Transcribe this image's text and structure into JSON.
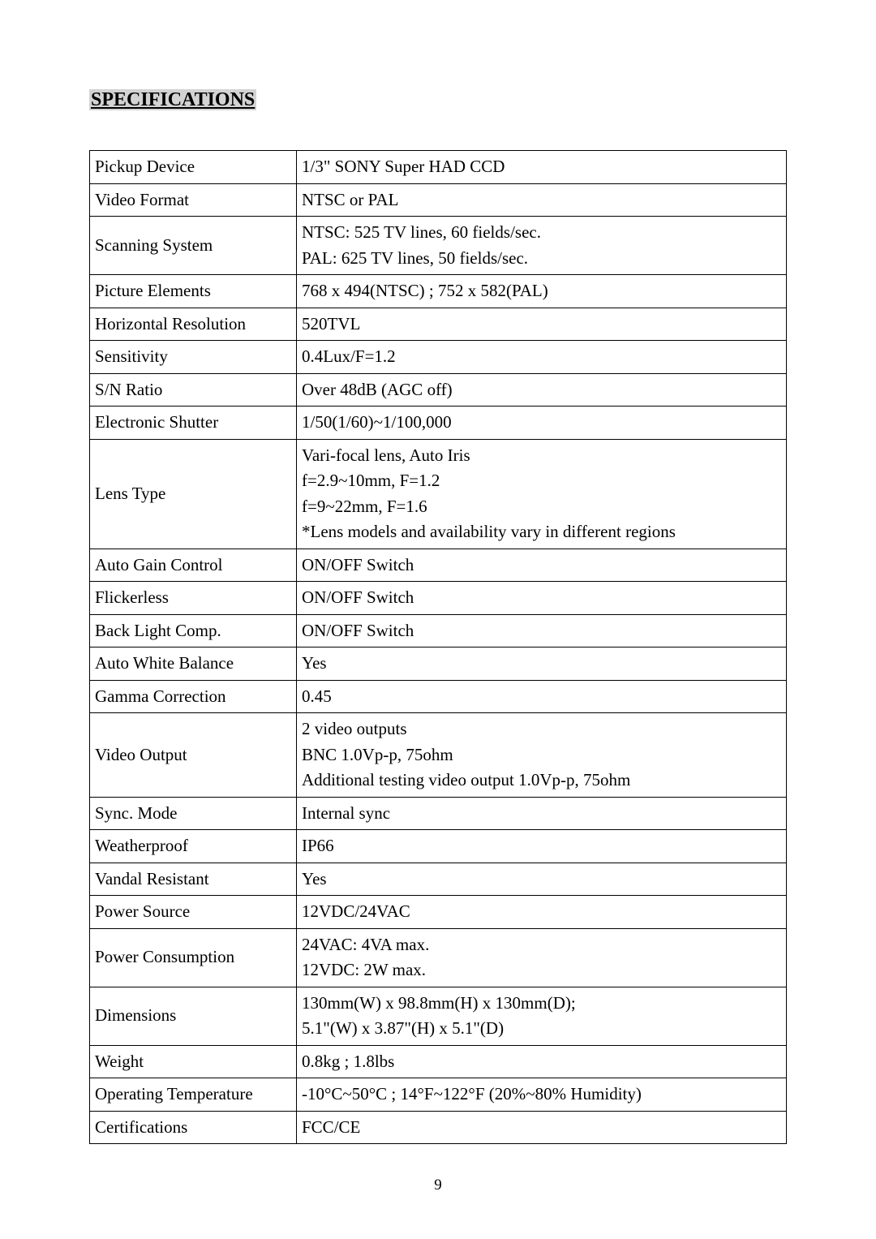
{
  "heading": "SPECIFICATIONS",
  "table": {
    "label_col_width": 255,
    "font_size": 21,
    "border_color": "#000000",
    "text_color": "#000000",
    "background_color": "#ffffff",
    "rows": [
      {
        "label": "Pickup Device",
        "value": "1/3\" SONY Super HAD CCD"
      },
      {
        "label": "Video Format",
        "value": "NTSC or PAL"
      },
      {
        "label": "Scanning System",
        "value": "NTSC: 525 TV lines, 60 fields/sec.\nPAL: 625 TV lines, 50 fields/sec."
      },
      {
        "label": "Picture Elements",
        "value": "768 x 494(NTSC) ; 752 x 582(PAL)"
      },
      {
        "label": "Horizontal Resolution",
        "value": "520TVL"
      },
      {
        "label": "Sensitivity",
        "value": "0.4Lux/F=1.2"
      },
      {
        "label": "S/N Ratio",
        "value": "Over 48dB (AGC off)"
      },
      {
        "label": "Electronic Shutter",
        "value": "1/50(1/60)~1/100,000"
      },
      {
        "label": "Lens Type",
        "value": "Vari-focal lens, Auto Iris\nf=2.9~10mm, F=1.2\nf=9~22mm, F=1.6\n*Lens models and availability vary in different regions\n "
      },
      {
        "label": "Auto Gain Control",
        "value": "ON/OFF Switch"
      },
      {
        "label": "Flickerless",
        "value": "ON/OFF Switch"
      },
      {
        "label": "Back Light Comp.",
        "value": "ON/OFF Switch"
      },
      {
        "label": "Auto White Balance",
        "value": "Yes"
      },
      {
        "label": "Gamma Correction",
        "value": "0.45"
      },
      {
        "label": "Video Output",
        "value": "2 video outputs\nBNC 1.0Vp-p, 75ohm\nAdditional testing video output 1.0Vp-p, 75ohm"
      },
      {
        "label": "Sync. Mode",
        "value": "Internal sync"
      },
      {
        "label": "Weatherproof",
        "value": "IP66"
      },
      {
        "label": "Vandal Resistant",
        "value": "Yes"
      },
      {
        "label": "Power Source",
        "value": "12VDC/24VAC"
      },
      {
        "label": "Power Consumption",
        "value": "24VAC: 4VA max.\n12VDC: 2W max."
      },
      {
        "label": "Dimensions",
        "value": "130mm(W) x 98.8mm(H) x 130mm(D);\n5.1\"(W) x 3.87\"(H) x 5.1\"(D)"
      },
      {
        "label": "Weight",
        "value": "0.8kg ; 1.8lbs"
      },
      {
        "label": "Operating Temperature",
        "value": "-10°C~50°C ; 14°F~122°F (20%~80% Humidity)"
      },
      {
        "label": "Certifications",
        "value": "FCC/CE"
      }
    ]
  },
  "heading_style": {
    "font_size": 24,
    "font_weight": "bold",
    "underline": true,
    "highlight_color": "#d3d3d3",
    "text_color": "#000000"
  },
  "page_number": "9"
}
